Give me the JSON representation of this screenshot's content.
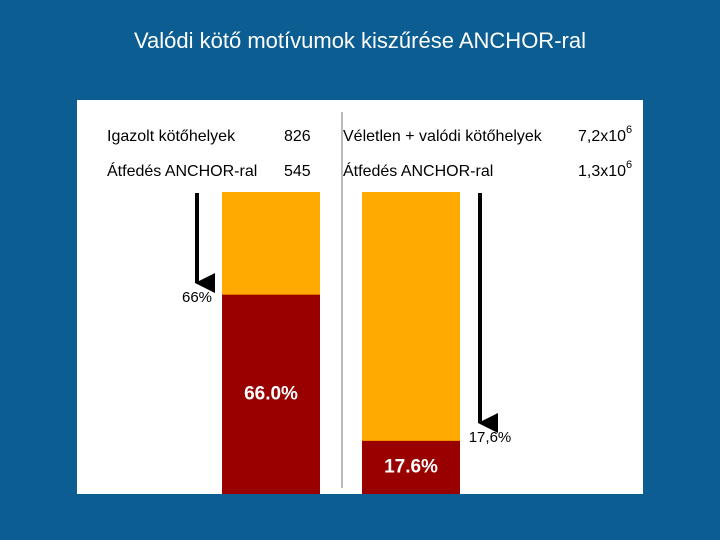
{
  "title": "Valódi kötő motívumok kiszűrése ANCHOR-ral",
  "left": {
    "total_label": "Igazolt kötőhelyek",
    "total": 826,
    "overlap_label": "Átfedés ANCHOR-ral",
    "overlap": 545,
    "percent": 66.0,
    "percent_label": "66.0%",
    "arrow_label": "66%"
  },
  "right": {
    "total_label": "Véletlen + valódi kötőhelyek",
    "total_base": "7,2x10",
    "total_exp": "6",
    "overlap_label": "Átfedés ANCHOR-ral",
    "overlap_base": "1,3x10",
    "overlap_exp": "6",
    "percent": 17.6,
    "percent_label": "17.6%",
    "arrow_label": "17,6%"
  }
}
